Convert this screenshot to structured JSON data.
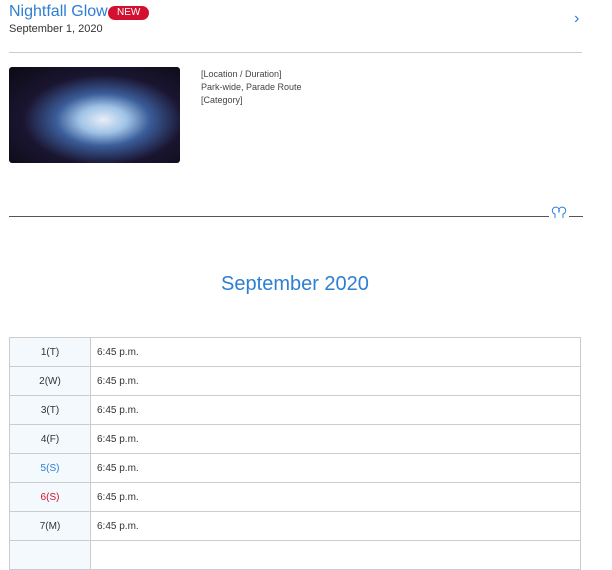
{
  "event": {
    "title": "Nightfall Glow",
    "badge": "NEW",
    "date": "September 1, 2020",
    "info": {
      "location_label": "[Location / Duration]",
      "location": "Park-wide, Parade Route",
      "category_label": "[Category]"
    }
  },
  "schedule": {
    "month": "September 2020",
    "rows": [
      {
        "day": "1(T)",
        "time": "6:45 p.m."
      },
      {
        "day": "2(W)",
        "time": "6:45 p.m."
      },
      {
        "day": "3(T)",
        "time": "6:45 p.m."
      },
      {
        "day": "4(F)",
        "time": "6:45 p.m."
      },
      {
        "day": "5(S)",
        "time": "6:45 p.m."
      },
      {
        "day": "6(S)",
        "time": "6:45 p.m."
      },
      {
        "day": "7(M)",
        "time": "6:45 p.m."
      }
    ]
  },
  "colors": {
    "accent": "#2c7fd3",
    "badge": "#d3102f",
    "saturday": "#2c7fd3",
    "sunday": "#d3102f"
  }
}
